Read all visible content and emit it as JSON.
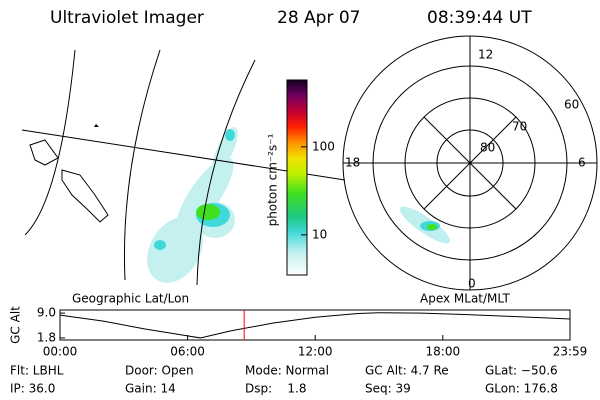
{
  "header": {
    "title": "Ultraviolet Imager",
    "date": "28 Apr 07",
    "time": "08:39:44 UT"
  },
  "panels": {
    "left": "Geographic Lat/Lon",
    "right": "Apex MLat/MLT"
  },
  "colorbar": {
    "label": "photon cm⁻²s⁻¹",
    "log": true,
    "lim": [
      3.5,
      575
    ],
    "ticks": [
      10,
      100
    ]
  },
  "polar": {
    "mlt_labels": [
      "12",
      "18",
      "6",
      "0"
    ],
    "lat_labels": [
      "60",
      "70",
      "80"
    ]
  },
  "chart_data": {
    "type": "line",
    "ylabel": "GC Alt",
    "x": [
      0,
      2,
      4,
      6,
      6.6,
      8,
      10,
      12,
      14,
      15,
      17,
      19,
      21,
      23.98
    ],
    "values": [
      8.4,
      6.7,
      4.4,
      2.4,
      1.8,
      3.8,
      6.1,
      7.8,
      8.9,
      9.1,
      9.0,
      8.6,
      8.1,
      7.3
    ],
    "color": "#000000",
    "xlim": [
      0,
      23.98
    ],
    "xticks": [
      {
        "value": 0,
        "label": "00:00"
      },
      {
        "value": 6,
        "label": "06:00"
      },
      {
        "value": 12,
        "label": "12:00"
      },
      {
        "value": 18,
        "label": "18:00"
      },
      {
        "value": 23.98,
        "label": "23:59"
      }
    ],
    "ylim": [
      1.2,
      9.9
    ],
    "yticks": [
      {
        "value": 1.8,
        "label": "1.8"
      },
      {
        "value": 9,
        "label": "9.0"
      }
    ],
    "marker_x": 8.66,
    "marker_color": "#ff0000"
  },
  "info": [
    [
      "Flt: LBHL",
      "Door: Open",
      "Mode: Normal",
      "GC Alt: 4.7 Re",
      "GLat: −50.6"
    ],
    [
      "IP: 36.0",
      "Gain: 14",
      "Dsp:    1.8",
      "Seq: 39",
      "GLon: 176.8"
    ]
  ]
}
